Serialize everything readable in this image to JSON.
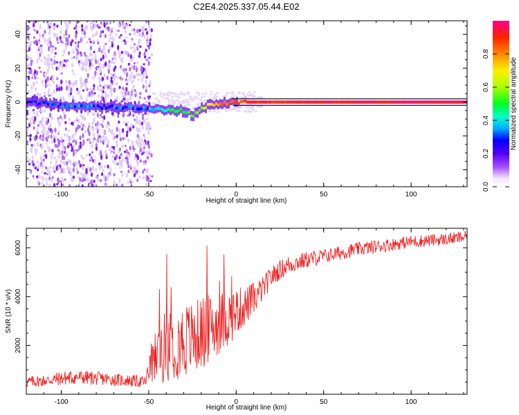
{
  "title": "C2E4.2025.337.05.44.E02",
  "colors": {
    "snr_line": "#ee2222",
    "ridge_high": "#ff2a6a",
    "guide_lines": "#000000"
  },
  "chart_data": [
    {
      "type": "heatmap",
      "name": "spectrogram",
      "xlabel": "Height of straight line (km)",
      "ylabel": "Frequency (Hz)",
      "xlim": [
        -120,
        132
      ],
      "ylim": [
        -50,
        48
      ],
      "xticks": [
        -100,
        -50,
        0,
        50,
        100
      ],
      "yticks": [
        -40,
        -20,
        0,
        20,
        40
      ],
      "guide_lines_hz": [
        2,
        -2
      ],
      "noise_region_km": [
        -120,
        -48
      ],
      "ridge": {
        "x": [
          -120,
          -100,
          -80,
          -60,
          -50,
          -40,
          -30,
          -25,
          -20,
          -10,
          0,
          10,
          50,
          100,
          132
        ],
        "freq": [
          0,
          -2,
          -3,
          -3,
          -4,
          -5,
          -5,
          -8,
          -3,
          -1,
          0,
          0,
          0,
          0,
          0
        ],
        "amplitude": [
          0.25,
          0.3,
          0.32,
          0.3,
          0.35,
          0.45,
          0.5,
          0.55,
          0.6,
          0.8,
          0.85,
          0.9,
          0.92,
          0.95,
          0.95
        ]
      },
      "colorbar": {
        "label": "Normalized spectral amplitude",
        "range": [
          0,
          1
        ],
        "ticks": [
          0.0,
          0.2,
          0.4,
          0.6,
          0.8
        ],
        "tick_labels": [
          "0.0",
          "0.2",
          "0.4",
          "0.6",
          "0.8"
        ]
      }
    },
    {
      "type": "line",
      "name": "snr",
      "xlabel": "Height of straight line (km)",
      "ylabel": "SNR (10 * v/v)",
      "xlim": [
        -120,
        132
      ],
      "ylim": [
        0,
        6800
      ],
      "xticks": [
        -100,
        -50,
        0,
        50,
        100
      ],
      "yticks": [
        2000,
        4000,
        6000
      ],
      "series": [
        {
          "name": "SNR",
          "x": [
            -120,
            -110,
            -100,
            -90,
            -80,
            -70,
            -60,
            -52,
            -50,
            -48,
            -45,
            -40,
            -35,
            -30,
            -25,
            -20,
            -15,
            -10,
            -5,
            0,
            5,
            10,
            15,
            20,
            25,
            30,
            35,
            40,
            50,
            60,
            70,
            80,
            90,
            100,
            110,
            120,
            132
          ],
          "values": [
            500,
            550,
            650,
            700,
            650,
            600,
            550,
            500,
            900,
            1200,
            1700,
            2000,
            2100,
            2200,
            2300,
            2500,
            2700,
            2900,
            3100,
            3400,
            3600,
            3900,
            4300,
            4800,
            5100,
            5300,
            5400,
            5500,
            5650,
            5800,
            5950,
            6050,
            6150,
            6250,
            6300,
            6350,
            6450
          ],
          "noise_amplitude": [
            250,
            250,
            300,
            300,
            280,
            260,
            250,
            250,
            600,
            900,
            1300,
            1500,
            1500,
            1600,
            1500,
            1500,
            1400,
            1300,
            1200,
            1000,
            800,
            700,
            500,
            450,
            400,
            400,
            350,
            350,
            300,
            300,
            280,
            280,
            260,
            260,
            260,
            250,
            250
          ]
        }
      ]
    }
  ]
}
